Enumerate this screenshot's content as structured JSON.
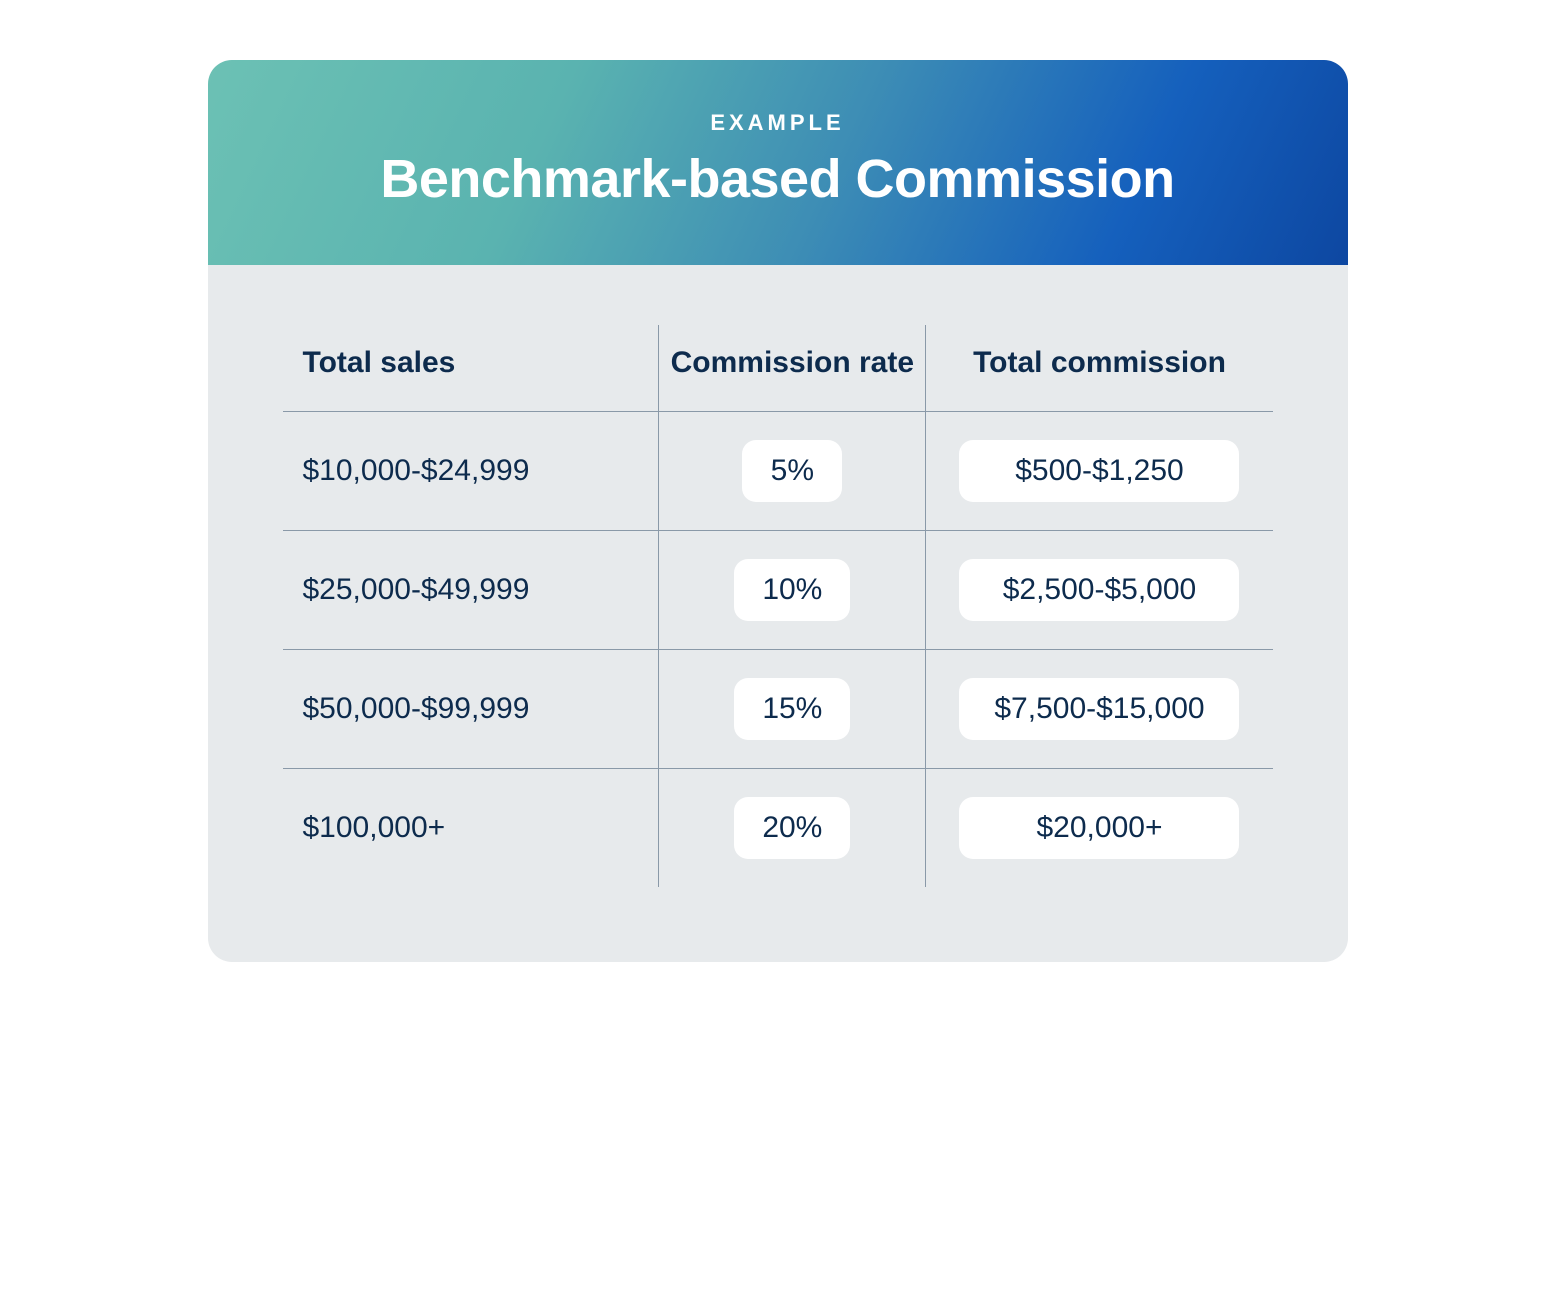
{
  "header": {
    "eyebrow": "EXAMPLE",
    "title": "Benchmark-based Commission"
  },
  "table": {
    "type": "table",
    "background_color": "#e7eaec",
    "header_gradient": [
      "#6cc1b4",
      "#5ab3b0",
      "#3d8db5",
      "#1560bd",
      "#0d47a1"
    ],
    "text_color": "#0d2b4d",
    "pill_background": "#ffffff",
    "border_color": "#8a99a8",
    "header_fontsize": 30,
    "cell_fontsize": 30,
    "columns": [
      {
        "key": "sales",
        "label": "Total sales",
        "align": "left"
      },
      {
        "key": "rate",
        "label": "Commission rate",
        "align": "center"
      },
      {
        "key": "total",
        "label": "Total commission",
        "align": "center"
      }
    ],
    "rows": [
      {
        "sales": "$10,000-$24,999",
        "rate": "5%",
        "total": "$500-$1,250"
      },
      {
        "sales": "$25,000-$49,999",
        "rate": "10%",
        "total": "$2,500-$5,000"
      },
      {
        "sales": "$50,000-$99,999",
        "rate": "15%",
        "total": "$7,500-$15,000"
      },
      {
        "sales": "$100,000+",
        "rate": "20%",
        "total": "$20,000+"
      }
    ]
  }
}
